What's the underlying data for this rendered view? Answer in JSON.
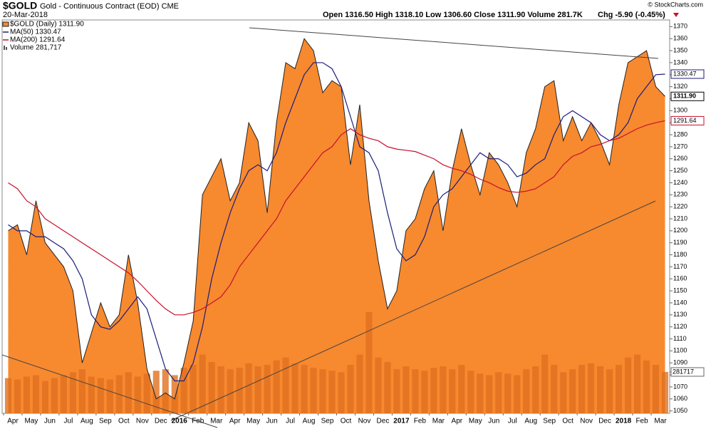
{
  "chart_data": {
    "type": "area",
    "symbol": "$GOLD",
    "title": "Gold - Continuous Contract (EOD) CME",
    "date": "20-Mar-2018",
    "source": "© StockCharts.com",
    "quote": "Open 1316.50  High 1318.10  Low 1306.60  Close 1311.90  Volume 281.7K",
    "change": "Chg -5.90 (-0.45%)",
    "categories": [
      "Apr",
      null,
      "May",
      null,
      "Jun",
      null,
      "Jul",
      null,
      "Aug",
      null,
      "Sep",
      null,
      "Oct",
      null,
      "Nov",
      null,
      "Dec",
      null,
      "2016",
      null,
      "Feb",
      null,
      "Mar",
      null,
      "Apr",
      null,
      "May",
      null,
      "Jun",
      null,
      "Jul",
      null,
      "Aug",
      null,
      "Sep",
      null,
      "Oct",
      null,
      "Nov",
      null,
      "Dec",
      null,
      "2017",
      null,
      "Feb",
      null,
      "Mar",
      null,
      "Apr",
      null,
      "May",
      null,
      "Jun",
      null,
      "Jul",
      null,
      "Aug",
      null,
      "Sep",
      null,
      "Oct",
      null,
      "Nov",
      null,
      "Dec",
      null,
      "2018",
      null,
      "Feb",
      null,
      "Mar",
      null
    ],
    "series": [
      {
        "name": "$GOLD (Daily) 1311.90",
        "color": "#f7892f",
        "last_label": "1311.90",
        "values": [
          1200,
          1205,
          1180,
          1225,
          1190,
          1180,
          1170,
          1150,
          1090,
          1115,
          1140,
          1120,
          1130,
          1180,
          1140,
          1085,
          1060,
          1065,
          1060,
          1090,
          1125,
          1230,
          1245,
          1260,
          1225,
          1240,
          1290,
          1275,
          1215,
          1290,
          1340,
          1335,
          1360,
          1350,
          1315,
          1325,
          1320,
          1255,
          1305,
          1225,
          1175,
          1135,
          1150,
          1200,
          1210,
          1235,
          1250,
          1200,
          1250,
          1285,
          1255,
          1230,
          1265,
          1255,
          1240,
          1220,
          1265,
          1285,
          1320,
          1325,
          1275,
          1295,
          1275,
          1290,
          1275,
          1255,
          1305,
          1340,
          1345,
          1350,
          1320,
          1311.9
        ]
      },
      {
        "name": "MA(50) 1330.47",
        "color": "#1c1c7a",
        "last_label": "1330.47",
        "values": [
          1205,
          1200,
          1200,
          1195,
          1195,
          1190,
          1185,
          1175,
          1160,
          1130,
          1120,
          1118,
          1125,
          1135,
          1145,
          1135,
          1110,
          1085,
          1075,
          1075,
          1090,
          1120,
          1160,
          1190,
          1215,
          1235,
          1250,
          1255,
          1250,
          1265,
          1290,
          1310,
          1330,
          1340,
          1340,
          1335,
          1320,
          1295,
          1270,
          1265,
          1250,
          1215,
          1185,
          1175,
          1180,
          1195,
          1220,
          1230,
          1235,
          1245,
          1255,
          1265,
          1260,
          1260,
          1255,
          1245,
          1248,
          1255,
          1260,
          1280,
          1295,
          1300,
          1295,
          1290,
          1280,
          1275,
          1280,
          1290,
          1310,
          1320,
          1330,
          1330.47
        ]
      },
      {
        "name": "MA(200) 1291.64",
        "color": "#c8102e",
        "last_label": "1291.64",
        "values": [
          1240,
          1235,
          1225,
          1220,
          1210,
          1205,
          1200,
          1195,
          1190,
          1185,
          1180,
          1175,
          1170,
          1165,
          1158,
          1150,
          1142,
          1135,
          1130,
          1130,
          1132,
          1135,
          1140,
          1145,
          1155,
          1170,
          1180,
          1190,
          1200,
          1210,
          1225,
          1235,
          1245,
          1255,
          1265,
          1270,
          1280,
          1285,
          1280,
          1277,
          1275,
          1270,
          1268,
          1267,
          1266,
          1263,
          1260,
          1255,
          1252,
          1250,
          1247,
          1243,
          1240,
          1236,
          1233,
          1232,
          1233,
          1235,
          1240,
          1245,
          1255,
          1262,
          1265,
          1270,
          1272,
          1275,
          1277,
          1281,
          1285,
          1288,
          1290,
          1291.64
        ]
      },
      {
        "name": "Volume 281,717",
        "color": "#e0701f",
        "axis": "y2",
        "values": [
          240000,
          230000,
          250000,
          260000,
          220000,
          240000,
          260000,
          280000,
          300000,
          250000,
          240000,
          230000,
          260000,
          280000,
          250000,
          270000,
          290000,
          300000,
          260000,
          310000,
          330000,
          400000,
          350000,
          320000,
          300000,
          310000,
          340000,
          320000,
          330000,
          360000,
          380000,
          340000,
          330000,
          310000,
          300000,
          290000,
          280000,
          330000,
          400000,
          690000,
          380000,
          350000,
          300000,
          320000,
          300000,
          290000,
          310000,
          320000,
          300000,
          330000,
          290000,
          270000,
          260000,
          280000,
          270000,
          260000,
          300000,
          320000,
          400000,
          330000,
          280000,
          300000,
          330000,
          340000,
          320000,
          300000,
          330000,
          380000,
          400000,
          360000,
          330000,
          281717
        ]
      }
    ],
    "ylim": [
      1048,
      1372
    ],
    "yticks": [
      1050,
      1060,
      1070,
      1080,
      1090,
      1100,
      1110,
      1120,
      1130,
      1140,
      1150,
      1160,
      1170,
      1180,
      1190,
      1200,
      1210,
      1220,
      1230,
      1240,
      1250,
      1260,
      1270,
      1280,
      1290,
      1300,
      1310,
      1320,
      1330,
      1340,
      1350,
      1360,
      1370
    ],
    "y2lim": [
      0,
      2650000
    ],
    "y2ticks": [
      {
        "value": 281717,
        "label": "281717"
      }
    ],
    "grid": false
  }
}
